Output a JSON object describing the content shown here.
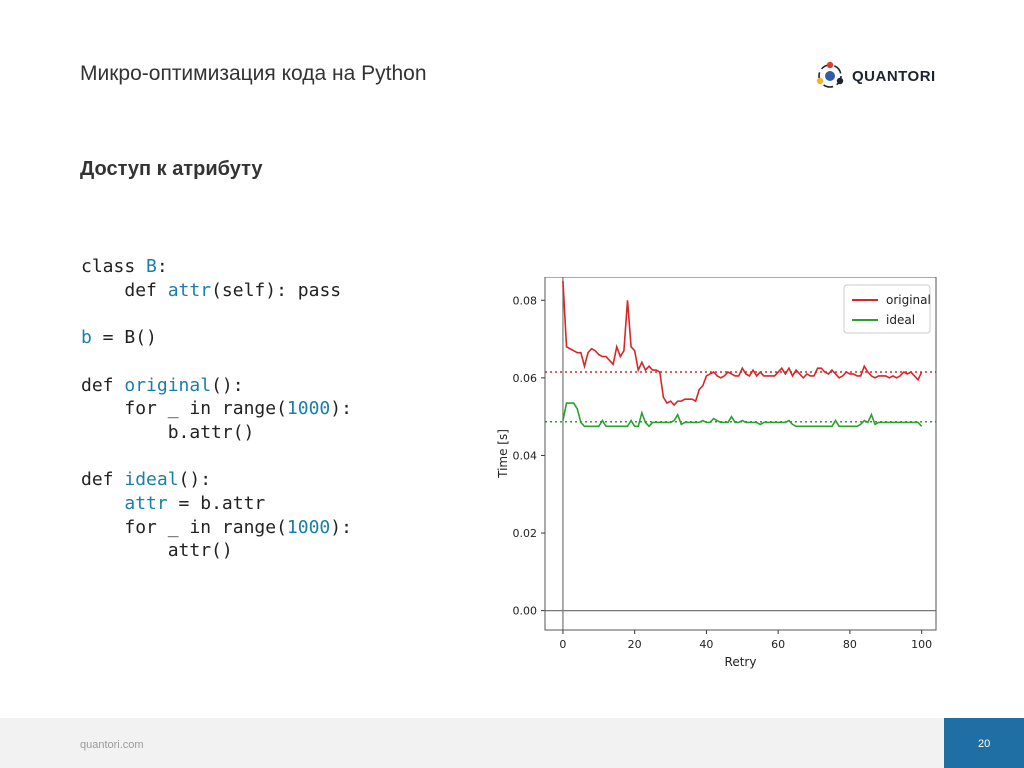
{
  "header": {
    "title": "Микро-оптимизация кода на Python",
    "logo_text": "QUANTORI"
  },
  "section_title": "Доступ к атрибуту",
  "code": {
    "l1_kw": "class",
    "l1_name": "B",
    "l1_rest": ":",
    "l2_kw": "def",
    "l2_name": "attr",
    "l2_rest": "(self): pass",
    "l4_var": "b",
    "l4_rest": " = B()",
    "l6_kw": "def",
    "l6_name": "original",
    "l6_rest": "():",
    "l7_a": "for _ in range(",
    "l7_num": "1000",
    "l7_b": "):",
    "l8": "b.attr()",
    "l10_kw": "def",
    "l10_name": "ideal",
    "l10_rest": "():",
    "l11_var": "attr",
    "l11_rest": " = b.attr",
    "l12_a": "for _ in range(",
    "l12_num": "1000",
    "l12_b": "):",
    "l13": "attr()"
  },
  "chart_data": {
    "type": "line",
    "xlabel": "Retry",
    "ylabel": "Time [s]",
    "xlim": [
      -5,
      104
    ],
    "ylim": [
      -0.005,
      0.086
    ],
    "xticks": [
      0,
      20,
      40,
      60,
      80,
      100
    ],
    "yticks": [
      "0.00",
      "0.02",
      "0.04",
      "0.06",
      "0.08"
    ],
    "legend_position": "top-right",
    "series": [
      {
        "name": "original",
        "color": "#d62728",
        "mean": 0.0615,
        "values": [
          0.085,
          0.068,
          0.0675,
          0.067,
          0.0665,
          0.0665,
          0.063,
          0.0665,
          0.0675,
          0.067,
          0.066,
          0.0655,
          0.0655,
          0.0645,
          0.0635,
          0.068,
          0.0655,
          0.067,
          0.08,
          0.068,
          0.067,
          0.062,
          0.064,
          0.062,
          0.063,
          0.062,
          0.062,
          0.0615,
          0.055,
          0.0535,
          0.054,
          0.053,
          0.054,
          0.054,
          0.0545,
          0.0545,
          0.0545,
          0.054,
          0.057,
          0.058,
          0.0605,
          0.061,
          0.0615,
          0.0605,
          0.06,
          0.0605,
          0.0615,
          0.061,
          0.0605,
          0.0605,
          0.0625,
          0.061,
          0.0605,
          0.062,
          0.0605,
          0.0615,
          0.0605,
          0.0605,
          0.0605,
          0.0605,
          0.0615,
          0.0625,
          0.061,
          0.0625,
          0.0605,
          0.062,
          0.061,
          0.06,
          0.061,
          0.0605,
          0.0605,
          0.0625,
          0.0625,
          0.0615,
          0.061,
          0.062,
          0.061,
          0.06,
          0.0605,
          0.0615,
          0.061,
          0.061,
          0.0605,
          0.0605,
          0.063,
          0.0615,
          0.0605,
          0.06,
          0.0605,
          0.0605,
          0.0605,
          0.06,
          0.0605,
          0.06,
          0.0605,
          0.0615,
          0.061,
          0.0615,
          0.0605,
          0.0595,
          0.0615
        ]
      },
      {
        "name": "ideal",
        "color": "#2ca02c",
        "mean": 0.0487,
        "values": [
          0.049,
          0.0535,
          0.0535,
          0.0535,
          0.052,
          0.0485,
          0.0475,
          0.0475,
          0.0475,
          0.0475,
          0.0475,
          0.049,
          0.0475,
          0.0475,
          0.0475,
          0.0475,
          0.0475,
          0.0475,
          0.0475,
          0.049,
          0.0475,
          0.0475,
          0.051,
          0.0485,
          0.0475,
          0.0485,
          0.0485,
          0.0485,
          0.0485,
          0.0485,
          0.0485,
          0.049,
          0.0505,
          0.048,
          0.0485,
          0.0485,
          0.0485,
          0.0485,
          0.0485,
          0.049,
          0.0485,
          0.0485,
          0.0495,
          0.049,
          0.0485,
          0.0485,
          0.0485,
          0.05,
          0.0485,
          0.0485,
          0.049,
          0.0485,
          0.0485,
          0.0485,
          0.0485,
          0.048,
          0.0485,
          0.0485,
          0.0485,
          0.0485,
          0.0485,
          0.0485,
          0.0485,
          0.049,
          0.048,
          0.0475,
          0.0475,
          0.0475,
          0.0475,
          0.0475,
          0.0475,
          0.0475,
          0.0475,
          0.0475,
          0.0475,
          0.0475,
          0.049,
          0.0475,
          0.0475,
          0.0475,
          0.0475,
          0.0475,
          0.0475,
          0.048,
          0.049,
          0.0485,
          0.0505,
          0.048,
          0.0485,
          0.0485,
          0.0485,
          0.0485,
          0.0485,
          0.0485,
          0.0485,
          0.0485,
          0.0485,
          0.0485,
          0.0485,
          0.0485,
          0.0475
        ]
      }
    ]
  },
  "footer": {
    "url": "quantori.com",
    "page_number": "20"
  }
}
